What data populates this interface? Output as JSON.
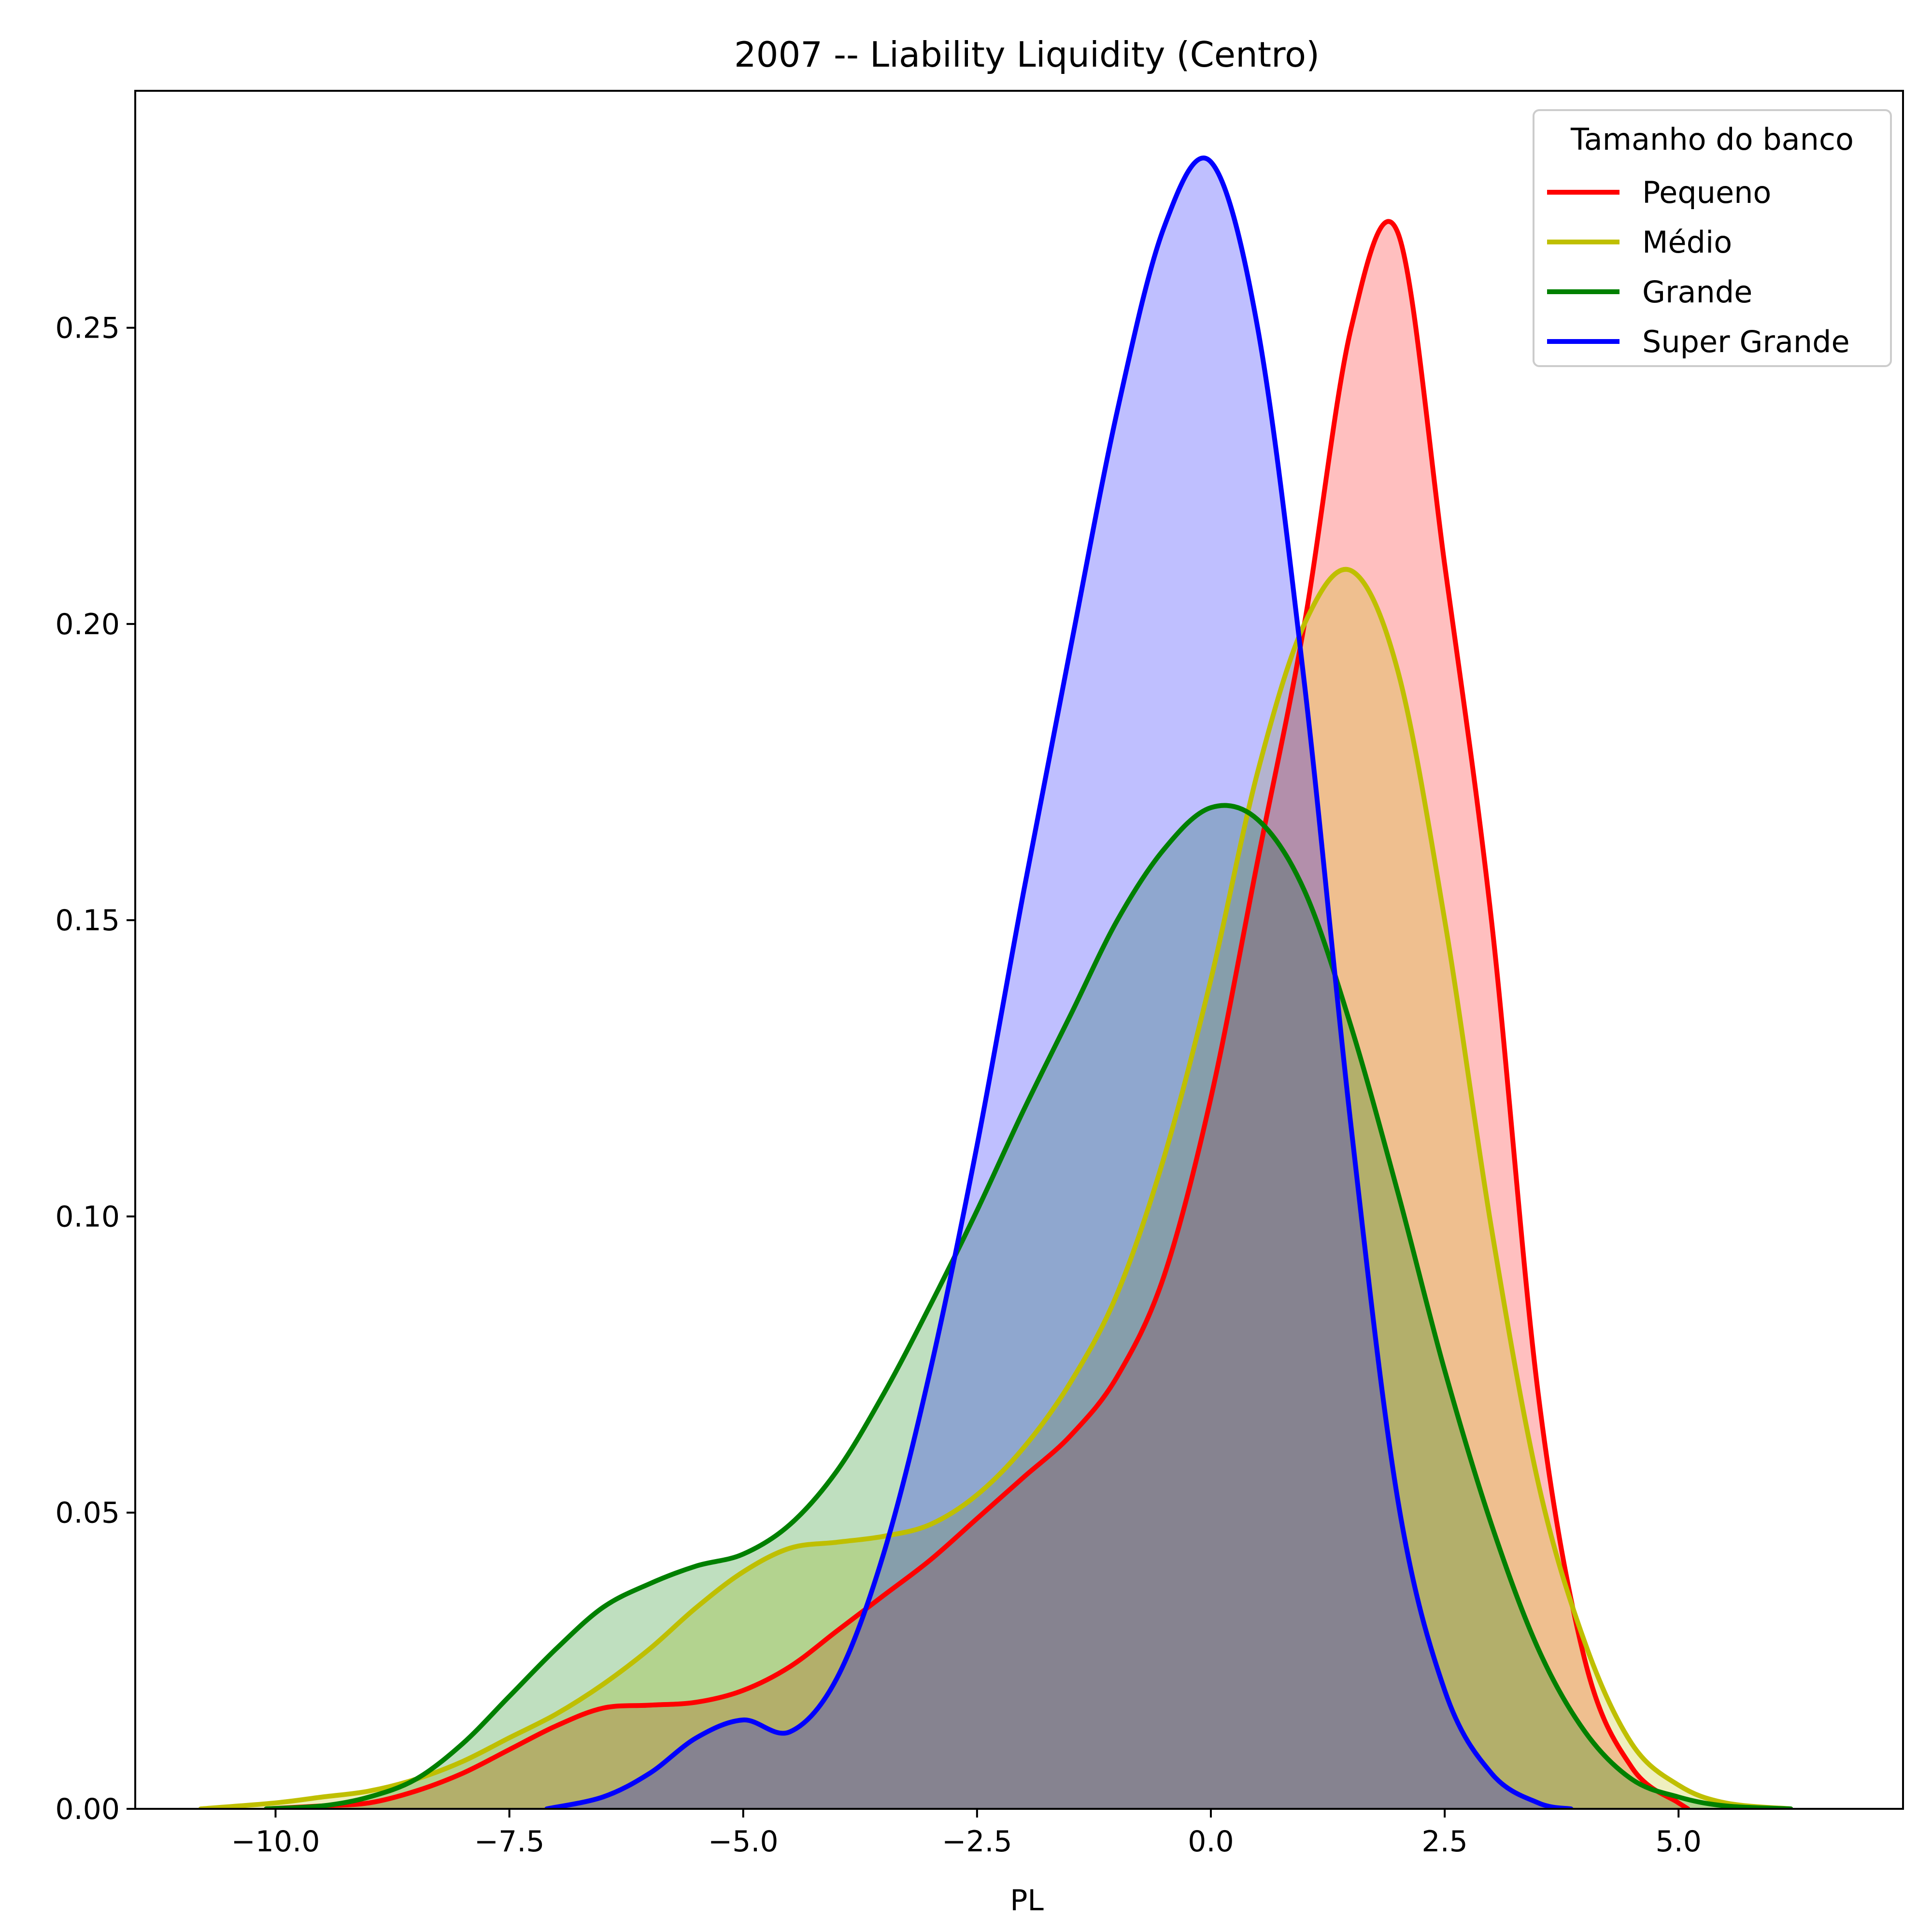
{
  "chart_data": {
    "type": "area",
    "title": "2007 -- Liability Liquidity (Centro)",
    "xlabel": "PL",
    "ylabel": "",
    "xlim": [
      -11.5,
      7.4
    ],
    "ylim": [
      0,
      0.29
    ],
    "grid": false,
    "xticks": [
      -10.0,
      -7.5,
      -5.0,
      -2.5,
      0.0,
      2.5,
      5.0
    ],
    "xtick_labels": [
      "−10.0",
      "−7.5",
      "−5.0",
      "−2.5",
      "0.0",
      "2.5",
      "5.0"
    ],
    "yticks": [
      0.0,
      0.05,
      0.1,
      0.15,
      0.2,
      0.25
    ],
    "ytick_labels": [
      "0.00",
      "0.05",
      "0.10",
      "0.15",
      "0.20",
      "0.25"
    ],
    "legend": {
      "title": "Tamanho do banco",
      "placement": "top-right"
    },
    "series": [
      {
        "name": "Pequeno",
        "color": "#ff0000",
        "fill": "#ff0000",
        "fill_opacity": 0.25,
        "x": [
          -10.1,
          -9.5,
          -9.0,
          -8.5,
          -8.0,
          -7.5,
          -7.0,
          -6.5,
          -6.0,
          -5.5,
          -5.0,
          -4.5,
          -4.0,
          -3.5,
          -3.0,
          -2.5,
          -2.0,
          -1.5,
          -1.0,
          -0.5,
          0.0,
          0.5,
          1.0,
          1.5,
          2.0,
          2.5,
          3.0,
          3.5,
          4.0,
          4.5,
          5.0,
          5.1
        ],
        "y": [
          0.0,
          0.0005,
          0.001,
          0.003,
          0.006,
          0.01,
          0.014,
          0.017,
          0.0175,
          0.018,
          0.02,
          0.024,
          0.03,
          0.036,
          0.042,
          0.049,
          0.056,
          0.063,
          0.073,
          0.09,
          0.12,
          0.16,
          0.2,
          0.25,
          0.266,
          0.21,
          0.15,
          0.07,
          0.025,
          0.007,
          0.001,
          0.0
        ]
      },
      {
        "name": "Médio",
        "color": "#bfbf00",
        "fill": "#bfbf00",
        "fill_opacity": 0.25,
        "x": [
          -10.8,
          -10.0,
          -9.5,
          -9.0,
          -8.5,
          -8.0,
          -7.5,
          -7.0,
          -6.5,
          -6.0,
          -5.5,
          -5.0,
          -4.5,
          -4.0,
          -3.5,
          -3.0,
          -2.5,
          -2.0,
          -1.5,
          -1.0,
          -0.5,
          0.0,
          0.5,
          1.0,
          1.5,
          2.0,
          2.5,
          3.0,
          3.5,
          4.0,
          4.5,
          5.0,
          5.5,
          6.2
        ],
        "y": [
          0.0,
          0.001,
          0.002,
          0.003,
          0.005,
          0.008,
          0.012,
          0.016,
          0.021,
          0.027,
          0.034,
          0.04,
          0.044,
          0.045,
          0.046,
          0.048,
          0.053,
          0.061,
          0.072,
          0.087,
          0.11,
          0.14,
          0.175,
          0.2,
          0.209,
          0.192,
          0.15,
          0.098,
          0.055,
          0.028,
          0.011,
          0.004,
          0.001,
          0.0
        ]
      },
      {
        "name": "Grande",
        "color": "#008000",
        "fill": "#008000",
        "fill_opacity": 0.25,
        "x": [
          -10.1,
          -9.5,
          -9.0,
          -8.5,
          -8.0,
          -7.5,
          -7.0,
          -6.5,
          -6.0,
          -5.5,
          -5.0,
          -4.5,
          -4.0,
          -3.5,
          -3.0,
          -2.5,
          -2.0,
          -1.5,
          -1.0,
          -0.5,
          0.0,
          0.5,
          1.0,
          1.5,
          2.0,
          2.5,
          3.0,
          3.5,
          4.0,
          4.5,
          5.0,
          5.5,
          6.2
        ],
        "y": [
          0.0,
          0.0005,
          0.002,
          0.005,
          0.011,
          0.019,
          0.027,
          0.034,
          0.038,
          0.041,
          0.043,
          0.048,
          0.057,
          0.07,
          0.085,
          0.101,
          0.118,
          0.134,
          0.15,
          0.162,
          0.169,
          0.167,
          0.155,
          0.132,
          0.104,
          0.074,
          0.048,
          0.027,
          0.013,
          0.005,
          0.002,
          0.0005,
          0.0
        ]
      },
      {
        "name": "Super Grande",
        "color": "#0000ff",
        "fill": "#0000ff",
        "fill_opacity": 0.25,
        "x": [
          -7.1,
          -6.5,
          -6.0,
          -5.5,
          -5.0,
          -4.5,
          -4.0,
          -3.5,
          -3.0,
          -2.5,
          -2.0,
          -1.5,
          -1.0,
          -0.5,
          0.0,
          0.5,
          1.0,
          1.5,
          2.0,
          2.5,
          3.0,
          3.5,
          3.85
        ],
        "y": [
          0.0,
          0.002,
          0.006,
          0.012,
          0.015,
          0.013,
          0.022,
          0.043,
          0.074,
          0.112,
          0.155,
          0.196,
          0.236,
          0.267,
          0.278,
          0.25,
          0.19,
          0.115,
          0.052,
          0.02,
          0.006,
          0.001,
          0.0
        ]
      }
    ]
  }
}
